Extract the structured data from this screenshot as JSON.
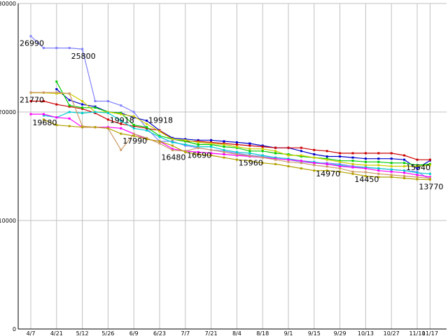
{
  "chart_data": {
    "type": "line",
    "ylim": [
      0,
      30000
    ],
    "grid": true,
    "y_ticks": [
      0,
      10000,
      20000,
      30000
    ],
    "x_tick_labels": [
      "4/7",
      "4/21",
      "5/12",
      "5/26",
      "6/9",
      "6/23",
      "7/7",
      "7/21",
      "8/4",
      "8/18",
      "9/1",
      "9/15",
      "9/29",
      "10/13",
      "10/27",
      "11/10",
      "11/17"
    ],
    "x_tick_pos": [
      0,
      2,
      4,
      6,
      8,
      10,
      12,
      14,
      16,
      18,
      20,
      22,
      24,
      26,
      28,
      30,
      31
    ],
    "series": [
      {
        "color": "#8080ff",
        "x": [
          0,
          1,
          2,
          3,
          4,
          5,
          6,
          7,
          8,
          9,
          10,
          11,
          12,
          13,
          14,
          15,
          16,
          17,
          18,
          19,
          20,
          21,
          22,
          23,
          24,
          25,
          26,
          27,
          28,
          29,
          30,
          31
        ],
        "values": [
          26990,
          25900,
          25900,
          25900,
          25800,
          21000,
          21000,
          20600,
          20000,
          18500,
          17300,
          17300,
          16900,
          16700,
          16500,
          16400,
          16200,
          16000,
          15900,
          15700,
          15600,
          15400,
          15300,
          15300,
          15200,
          15000,
          14900,
          14800,
          14700,
          14600,
          14500,
          13800
        ]
      },
      {
        "color": "#0000cc",
        "x": [
          2,
          3,
          4,
          5,
          6,
          7,
          8,
          9,
          10,
          11,
          12,
          13,
          14,
          15,
          16,
          17,
          18,
          19,
          20,
          21,
          22,
          23,
          24,
          25,
          26,
          27,
          28,
          29,
          30,
          31
        ],
        "values": [
          22100,
          21100,
          20700,
          20500,
          20000,
          19918,
          19500,
          19200,
          18300,
          17600,
          17500,
          17400,
          17400,
          17300,
          17200,
          17100,
          16900,
          16700,
          16700,
          16400,
          16100,
          15900,
          15900,
          15800,
          15700,
          15700,
          15700,
          15600,
          14800,
          15540
        ]
      },
      {
        "color": "#cc0000",
        "x": [
          0,
          1,
          2,
          3,
          4,
          5,
          6,
          7,
          8,
          9,
          10,
          11,
          12,
          13,
          14,
          15,
          16,
          17,
          18,
          19,
          20,
          21,
          22,
          23,
          24,
          25,
          26,
          27,
          28,
          29,
          30,
          31
        ],
        "values": [
          21000,
          21000,
          20700,
          20500,
          20300,
          19900,
          19300,
          18900,
          18700,
          18500,
          18300,
          17500,
          17300,
          17300,
          17200,
          17100,
          17000,
          16900,
          16800,
          16700,
          16700,
          16700,
          16500,
          16400,
          16200,
          16200,
          16200,
          16200,
          16200,
          16000,
          15600,
          15600
        ]
      },
      {
        "color": "#00cc00",
        "x": [
          2,
          3,
          4,
          5,
          6,
          7,
          8,
          9,
          10,
          11,
          12,
          13,
          14,
          15,
          16,
          17,
          18,
          19,
          20,
          21,
          22,
          23,
          24,
          25,
          26,
          27,
          28,
          29,
          30,
          31
        ],
        "values": [
          22800,
          20600,
          20400,
          20400,
          20000,
          19900,
          18800,
          18600,
          17800,
          17500,
          17300,
          17000,
          17000,
          16800,
          16700,
          16400,
          16400,
          16200,
          16100,
          15900,
          15800,
          15700,
          15500,
          15500,
          15400,
          15400,
          15300,
          15300,
          15100,
          15200
        ]
      },
      {
        "color": "#cccc00",
        "x": [
          0,
          1,
          2,
          3,
          4,
          5,
          6,
          7,
          8,
          9,
          10,
          11,
          12,
          13,
          14,
          15,
          16,
          17,
          18,
          19,
          20,
          21,
          22,
          23,
          24,
          25,
          26,
          27,
          28,
          29,
          30,
          31
        ],
        "values": [
          21770,
          21770,
          21700,
          21700,
          21000,
          20000,
          20000,
          19800,
          19600,
          18900,
          18200,
          17500,
          17400,
          17200,
          17100,
          17000,
          16800,
          16600,
          16600,
          16400,
          16000,
          16000,
          15800,
          15600,
          15400,
          15200,
          15100,
          15100,
          15000,
          15000,
          15000,
          15100
        ]
      },
      {
        "color": "#00cccc",
        "x": [
          1,
          2,
          3,
          4,
          5,
          6,
          7,
          8,
          9,
          10,
          11,
          12,
          13,
          14,
          15,
          16,
          17,
          18,
          19,
          20,
          21,
          22,
          23,
          24,
          25,
          26,
          27,
          28,
          29,
          30,
          31
        ],
        "values": [
          19680,
          19500,
          20000,
          19900,
          20000,
          19918,
          19200,
          18500,
          18300,
          17700,
          17200,
          17000,
          16800,
          16800,
          16500,
          16300,
          16200,
          16000,
          15800,
          15700,
          15500,
          15400,
          15200,
          15100,
          14900,
          14900,
          14800,
          14700,
          14600,
          14400,
          14300
        ]
      },
      {
        "color": "#ff00ff",
        "x": [
          0,
          1,
          2,
          3,
          4,
          5,
          6,
          7,
          8,
          9,
          10,
          11,
          12,
          13,
          14,
          15,
          16,
          17,
          18,
          19,
          20,
          21,
          22,
          23,
          24,
          25,
          26,
          27,
          28,
          29,
          30,
          31
        ],
        "values": [
          19800,
          19800,
          19500,
          19400,
          18600,
          18600,
          18600,
          18500,
          17990,
          17500,
          17300,
          16600,
          16400,
          16300,
          16200,
          16100,
          16000,
          15900,
          15800,
          15700,
          15600,
          15500,
          15300,
          15200,
          15000,
          14900,
          14800,
          14600,
          14500,
          14400,
          14200,
          14000
        ]
      },
      {
        "color": "#cc9966",
        "x": [
          0,
          1,
          2,
          3,
          4,
          5,
          6,
          7,
          8,
          9,
          10,
          11,
          12,
          13,
          14,
          15,
          16,
          17,
          18,
          19,
          20,
          21,
          22,
          23,
          24,
          25,
          26,
          27,
          28,
          29,
          30,
          31
        ],
        "values": [
          21800,
          21800,
          21800,
          21700,
          18700,
          18600,
          18500,
          16500,
          17990,
          17600,
          17100,
          16480,
          16400,
          16690,
          16500,
          16300,
          16100,
          15960,
          15800,
          15600,
          15400,
          15300,
          15100,
          14970,
          14800,
          14500,
          14450,
          14300,
          14200,
          14100,
          14000,
          13900
        ]
      },
      {
        "color": "#b3a000",
        "x": [
          1,
          2,
          3,
          4,
          5,
          6,
          7,
          8,
          9,
          10,
          11,
          12,
          13,
          14,
          15,
          16,
          17,
          18,
          19,
          20,
          21,
          22,
          23,
          24,
          25,
          26,
          27,
          28,
          29,
          30,
          31
        ],
        "values": [
          19300,
          18800,
          18700,
          18600,
          18600,
          18500,
          18000,
          17800,
          17500,
          17300,
          16900,
          16300,
          16100,
          16000,
          15800,
          15600,
          15500,
          15300,
          15200,
          15000,
          14800,
          14600,
          14600,
          14500,
          14300,
          14100,
          14000,
          14000,
          13900,
          13800,
          13770
        ]
      }
    ],
    "annotations": [
      {
        "text": "26990",
        "x": 0,
        "y": 26990
      },
      {
        "text": "25800",
        "x": 4,
        "y": 25800
      },
      {
        "text": "21770",
        "x": 0,
        "y": 21770
      },
      {
        "text": "19680",
        "x": 1,
        "y": 19680
      },
      {
        "text": "19918",
        "x": 7,
        "y": 19918
      },
      {
        "text": "19918",
        "x": 10,
        "y": 19918
      },
      {
        "text": "17990",
        "x": 8,
        "y": 17990
      },
      {
        "text": "16480",
        "x": 11,
        "y": 16480
      },
      {
        "text": "16690",
        "x": 13,
        "y": 16690
      },
      {
        "text": "15960",
        "x": 17,
        "y": 15960
      },
      {
        "text": "14970",
        "x": 23,
        "y": 14970
      },
      {
        "text": "14450",
        "x": 26,
        "y": 14450
      },
      {
        "text": "15540",
        "x": 30,
        "y": 15540
      },
      {
        "text": "13770",
        "x": 31,
        "y": 13770
      }
    ]
  }
}
